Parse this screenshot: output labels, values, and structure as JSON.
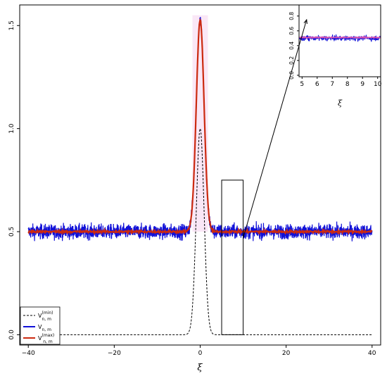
{
  "chart_data": [
    {
      "id": "main",
      "type": "line",
      "title": "",
      "xlabel": "ξ",
      "ylabel": "",
      "xlim": [
        -42,
        42
      ],
      "ylim": [
        -0.05,
        1.6
      ],
      "x_ticks": [
        -40,
        -20,
        0,
        20,
        40
      ],
      "x_tick_labels": [
        "−40",
        "−20",
        "0",
        "20",
        "40"
      ],
      "y_ticks": [
        0.0,
        0.5,
        1.0,
        1.5
      ],
      "y_tick_labels": [
        "0.0",
        "0.5",
        "1.0",
        "1.5"
      ],
      "x_range": [
        -40,
        40
      ],
      "grid": false,
      "series": [
        {
          "key": "vmin",
          "style": "dashed",
          "color": "#000000",
          "peak": 1.0,
          "baseline": 0.0,
          "width": 0.9,
          "noise": 0
        },
        {
          "key": "vnm",
          "style": "solid",
          "color": "#1010d8",
          "peak": 1.53,
          "baseline": 0.5,
          "width": 0.9,
          "noise": 0.025
        },
        {
          "key": "vmax",
          "style": "solid",
          "color": "#cc2a10",
          "peak": 1.53,
          "baseline": 0.5,
          "width": 0.9,
          "noise": 0.004
        }
      ],
      "zoom_box": {
        "x": [
          5,
          10
        ],
        "y": [
          0.0,
          0.75
        ]
      }
    },
    {
      "id": "inset",
      "type": "line",
      "xlabel": "ξ",
      "xlim": [
        4.8,
        10.2
      ],
      "ylim": [
        -0.02,
        0.95
      ],
      "x_ticks": [
        5,
        6,
        7,
        8,
        9,
        10
      ],
      "x_tick_labels": [
        "5",
        "6",
        "7",
        "8",
        "9",
        "10"
      ],
      "y_ticks": [
        0.0,
        0.2,
        0.4,
        0.6,
        0.8
      ],
      "y_tick_labels": [
        "0.0",
        "0.2",
        "0.4",
        "0.6",
        "0.8"
      ],
      "series_baseline": 0.5,
      "noise": 0.025
    }
  ],
  "legend": {
    "placement": "bottom-left",
    "entries": [
      {
        "key": "vmin",
        "main": "V",
        "sub": "n, m",
        "sup": "(min)",
        "color": "#000000",
        "style": "dashed"
      },
      {
        "key": "vnm",
        "main": "V",
        "sub": "n, m",
        "sup": "",
        "color": "#1010d8",
        "style": "solid"
      },
      {
        "key": "vmax",
        "main": "V",
        "sub": "n, m",
        "sup": "(max)",
        "color": "#cc2a10",
        "style": "solid"
      }
    ]
  }
}
